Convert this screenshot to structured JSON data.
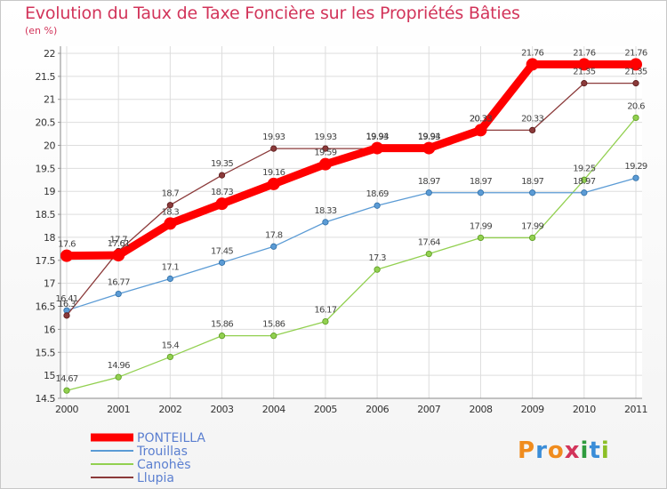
{
  "title": "Evolution du Taux de Taxe Foncière sur les Propriétés Bâties",
  "unit_label": "(en %)",
  "logo": {
    "text": "Proxiti",
    "colors": [
      "#f08c1e",
      "#3a8dd8",
      "#f08c1e",
      "#d2345a",
      "#2e9b3e",
      "#3a8dd8",
      "#8cbf26"
    ]
  },
  "chart_data": {
    "type": "line",
    "x": [
      2000,
      2001,
      2002,
      2003,
      2004,
      2005,
      2006,
      2007,
      2008,
      2009,
      2010,
      2011
    ],
    "ylim": [
      14.5,
      22
    ],
    "yticks": [
      14.5,
      15,
      15.5,
      16,
      16.5,
      17,
      17.5,
      18,
      18.5,
      19,
      19.5,
      20,
      20.5,
      21,
      21.5,
      22
    ],
    "ytick_labels": [
      "14.5",
      "15",
      "15.5",
      "16",
      "16.5",
      "17",
      "17.5",
      "18",
      "18.5",
      "19",
      "19.5",
      "20",
      "20.5",
      "21",
      "21.5",
      "22"
    ],
    "grid": true,
    "legend_position": "bottom-left",
    "series": [
      {
        "name": "PONTEILLA",
        "color": "#ff0000",
        "values": [
          17.6,
          17.61,
          18.3,
          18.73,
          19.16,
          19.59,
          19.94,
          19.94,
          20.33,
          21.76,
          21.76,
          21.76
        ],
        "labels": [
          "17.6",
          "17.61",
          "18.3",
          "18.73",
          "19.16",
          "19.59",
          "19.94",
          "19.94",
          "20.33",
          "21.76",
          "21.76",
          "21.76"
        ]
      },
      {
        "name": "Trouillas",
        "color": "#5b9bd5",
        "values": [
          16.41,
          16.77,
          17.1,
          17.45,
          17.8,
          18.33,
          18.69,
          18.97,
          18.97,
          18.97,
          18.97,
          19.29
        ],
        "labels": [
          "16.41",
          "16.77",
          "17.1",
          "17.45",
          "17.8",
          "18.33",
          "18.69",
          "18.97",
          "18.97",
          "18.97",
          "18.97",
          "19.29"
        ]
      },
      {
        "name": "Canohès",
        "color": "#92d050",
        "values": [
          14.67,
          14.96,
          15.4,
          15.86,
          15.86,
          16.17,
          17.3,
          17.64,
          17.99,
          17.99,
          19.25,
          20.6
        ],
        "labels": [
          "14.67",
          "14.96",
          "15.4",
          "15.86",
          "15.86",
          "16.17",
          "17.3",
          "17.64",
          "17.99",
          "17.99",
          "19.25",
          "20.6"
        ]
      },
      {
        "name": "Llupia",
        "color": "#8b3a3a",
        "values": [
          16.3,
          17.7,
          18.7,
          19.35,
          19.93,
          19.93,
          19.93,
          19.93,
          20.33,
          20.33,
          21.35,
          21.35
        ],
        "labels": [
          "16.3",
          "17.7",
          "18.7",
          "19.35",
          "19.93",
          "19.93",
          "19.93",
          "19.93",
          "20.33",
          "20.33",
          "21.35",
          "21.35"
        ]
      }
    ]
  }
}
